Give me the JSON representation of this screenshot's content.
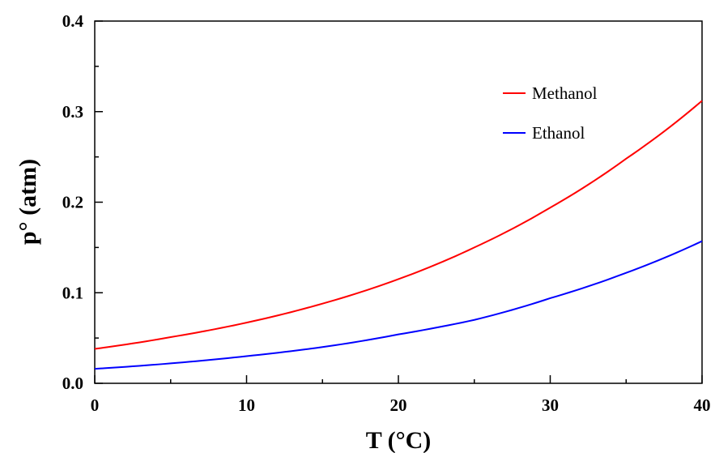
{
  "chart_data": {
    "type": "line",
    "title": "",
    "xlabel": "T (°C)",
    "ylabel": "p° (atm)",
    "xlim": [
      0,
      40
    ],
    "ylim": [
      0,
      0.4
    ],
    "x_ticks": [
      0,
      10,
      20,
      30,
      40
    ],
    "x_tick_labels": [
      "0",
      "10",
      "20",
      "30",
      "40"
    ],
    "y_ticks": [
      0,
      0.1,
      0.2,
      0.3,
      0.4
    ],
    "y_tick_labels": [
      "0.0",
      "0.1",
      "0.2",
      "0.3",
      "0.4"
    ],
    "grid": false,
    "legend_position": "top-right",
    "x": [
      0,
      5,
      10,
      15,
      20,
      25,
      30,
      35,
      40
    ],
    "series": [
      {
        "name": "Methanol",
        "color": "#ff0000",
        "values": [
          0.038,
          0.051,
          0.067,
          0.088,
          0.115,
          0.15,
          0.194,
          0.248,
          0.312
        ]
      },
      {
        "name": "Ethanol",
        "color": "#0000ff",
        "values": [
          0.016,
          0.022,
          0.03,
          0.04,
          0.054,
          0.07,
          0.094,
          0.122,
          0.157
        ]
      }
    ]
  }
}
